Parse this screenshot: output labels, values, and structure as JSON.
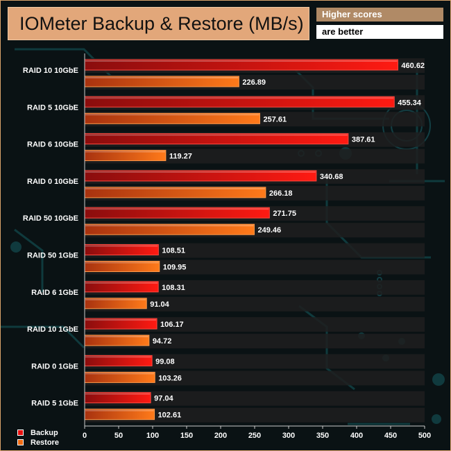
{
  "header": {
    "title": "IOMeter Backup & Restore (MB/s)",
    "note_line1": "Higher scores",
    "note_line2": "are better"
  },
  "colors": {
    "backup": "#e8100e",
    "restore": "#f06a12",
    "title_bg": "#e2a77a",
    "note_bg": "#b08a66"
  },
  "chart_data": {
    "type": "bar",
    "orientation": "horizontal",
    "title": "IOMeter Backup & Restore (MB/s)",
    "categories": [
      "RAID 10 10GbE",
      "RAID 5 10GbE",
      "RAID 6 10GbE",
      "RAID 0 10GbE",
      "RAID 50 10GbE",
      "RAID 50 1GbE",
      "RAID 6 1GbE",
      "RAID 10 1GbE",
      "RAID 0 1GbE",
      "RAID 5 1GbE"
    ],
    "series": [
      {
        "name": "Backup",
        "values": [
          460.62,
          455.34,
          387.61,
          340.68,
          271.75,
          108.51,
          108.31,
          106.17,
          99.08,
          97.04
        ]
      },
      {
        "name": "Restore",
        "values": [
          226.89,
          257.61,
          119.27,
          266.18,
          249.46,
          109.95,
          91.04,
          94.72,
          103.26,
          102.61
        ]
      }
    ],
    "value_labels": [
      [
        "460.62",
        "455.34",
        "387.61",
        "340.68",
        "271.75",
        "108.51",
        "108.31",
        "106.17",
        "99.08",
        "97.04"
      ],
      [
        "226.89",
        "257.61",
        "119.27",
        "266.18",
        "249.46",
        "109.95",
        "91.04",
        "94.72",
        "103.26",
        "102.61"
      ]
    ],
    "xlim": [
      0,
      500
    ],
    "xticks": [
      "0",
      "50",
      "100",
      "150",
      "200",
      "250",
      "300",
      "350",
      "400",
      "450",
      "500"
    ],
    "legend_position": "bottom-left",
    "grid": false
  }
}
